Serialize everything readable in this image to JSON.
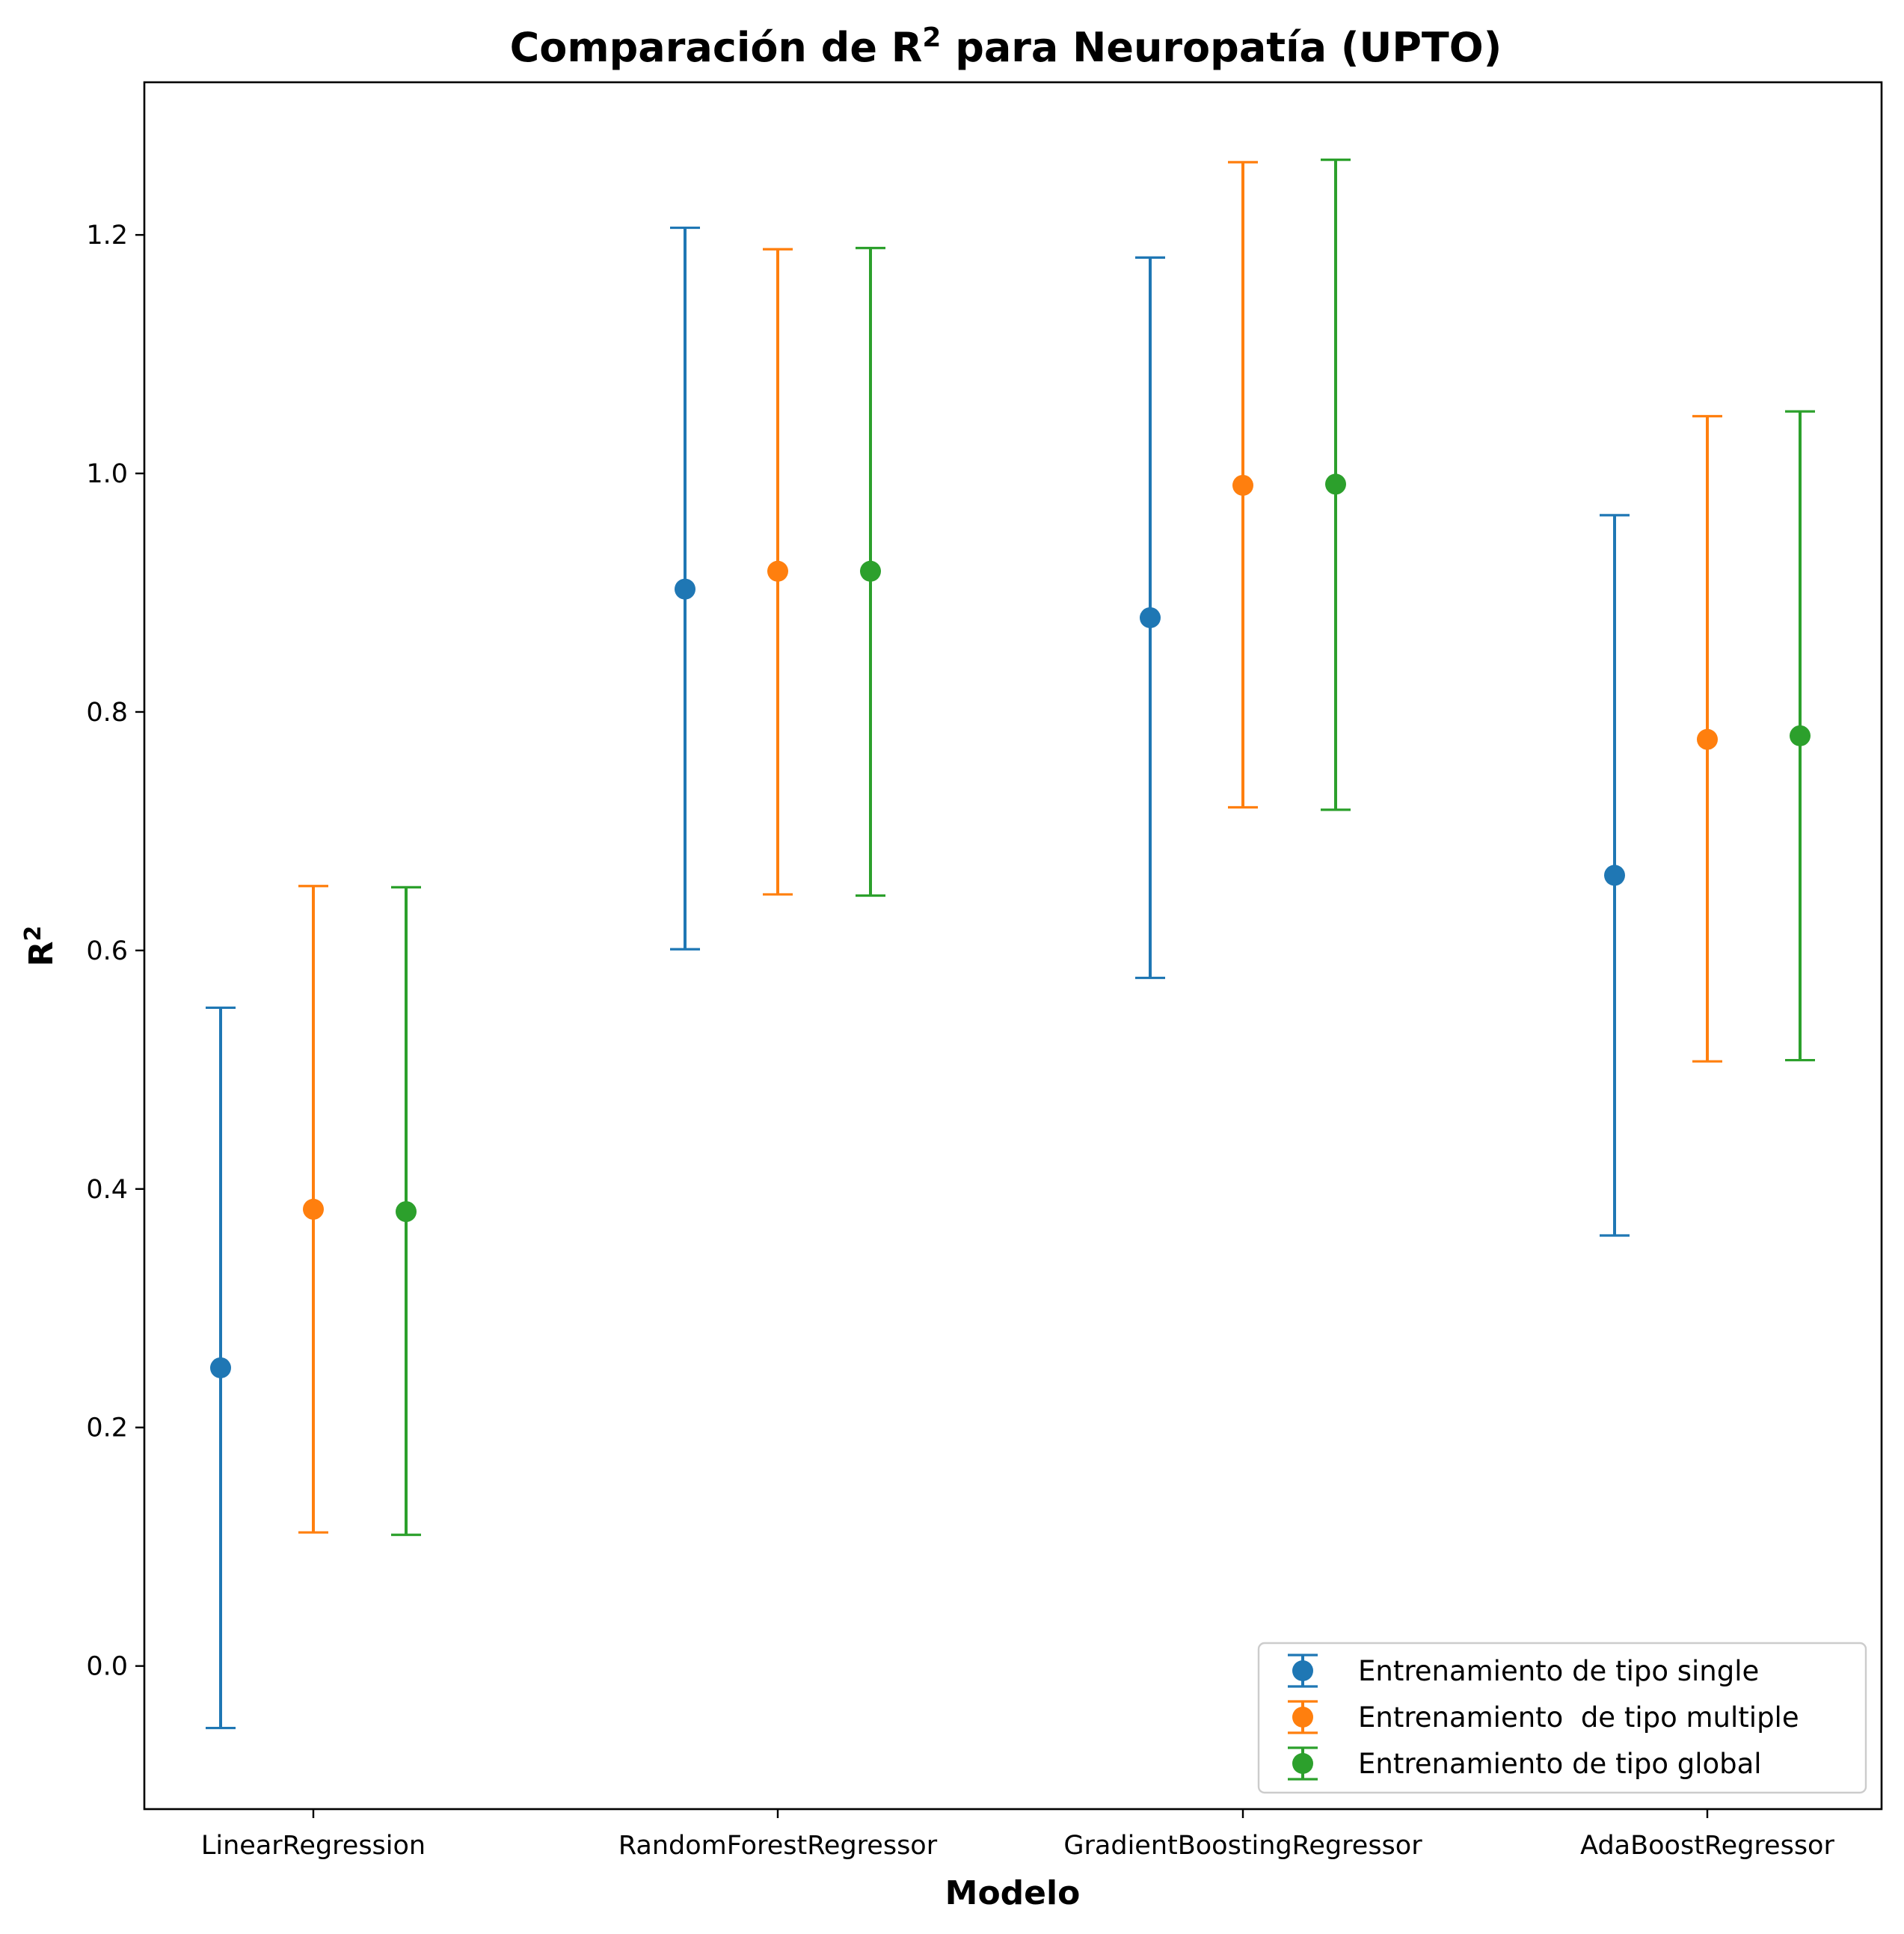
{
  "chart_data": {
    "type": "scatter",
    "title": {
      "prefix": "Comparación de R",
      "sup": "2",
      "suffix": " para Neuropatía (UPTO)"
    },
    "xlabel": "Modelo",
    "ylabel": {
      "base": "R",
      "sup": "2"
    },
    "categories": [
      "LinearRegression",
      "RandomForestRegressor",
      "GradientBoostingRegressor",
      "AdaBoostRegressor"
    ],
    "ylim": [
      -0.12,
      1.328
    ],
    "yticks": [
      0.0,
      0.2,
      0.4,
      0.6,
      0.8,
      1.0,
      1.2
    ],
    "ytick_labels": [
      "0.0",
      "0.2",
      "0.4",
      "0.6",
      "0.8",
      "1.0",
      "1.2"
    ],
    "grid": false,
    "legend_position": "lower-right",
    "series": [
      {
        "name": "Entrenamiento de tipo single",
        "color": "#1f77b4",
        "values": [
          0.25,
          0.903,
          0.879,
          0.663
        ],
        "err_low": [
          -0.052,
          0.601,
          0.577,
          0.361
        ],
        "err_high": [
          0.552,
          1.206,
          1.181,
          0.965
        ]
      },
      {
        "name": "Entrenamiento  de tipo multiple",
        "color": "#ff7f0e",
        "values": [
          0.383,
          0.918,
          0.99,
          0.777
        ],
        "err_low": [
          0.112,
          0.647,
          0.72,
          0.507
        ],
        "err_high": [
          0.654,
          1.188,
          1.261,
          1.048
        ]
      },
      {
        "name": "Entrenamiento de tipo global",
        "color": "#2ca02c",
        "values": [
          0.381,
          0.918,
          0.991,
          0.78
        ],
        "err_low": [
          0.11,
          0.646,
          0.718,
          0.508
        ],
        "err_high": [
          0.653,
          1.189,
          1.263,
          1.052
        ]
      }
    ]
  }
}
